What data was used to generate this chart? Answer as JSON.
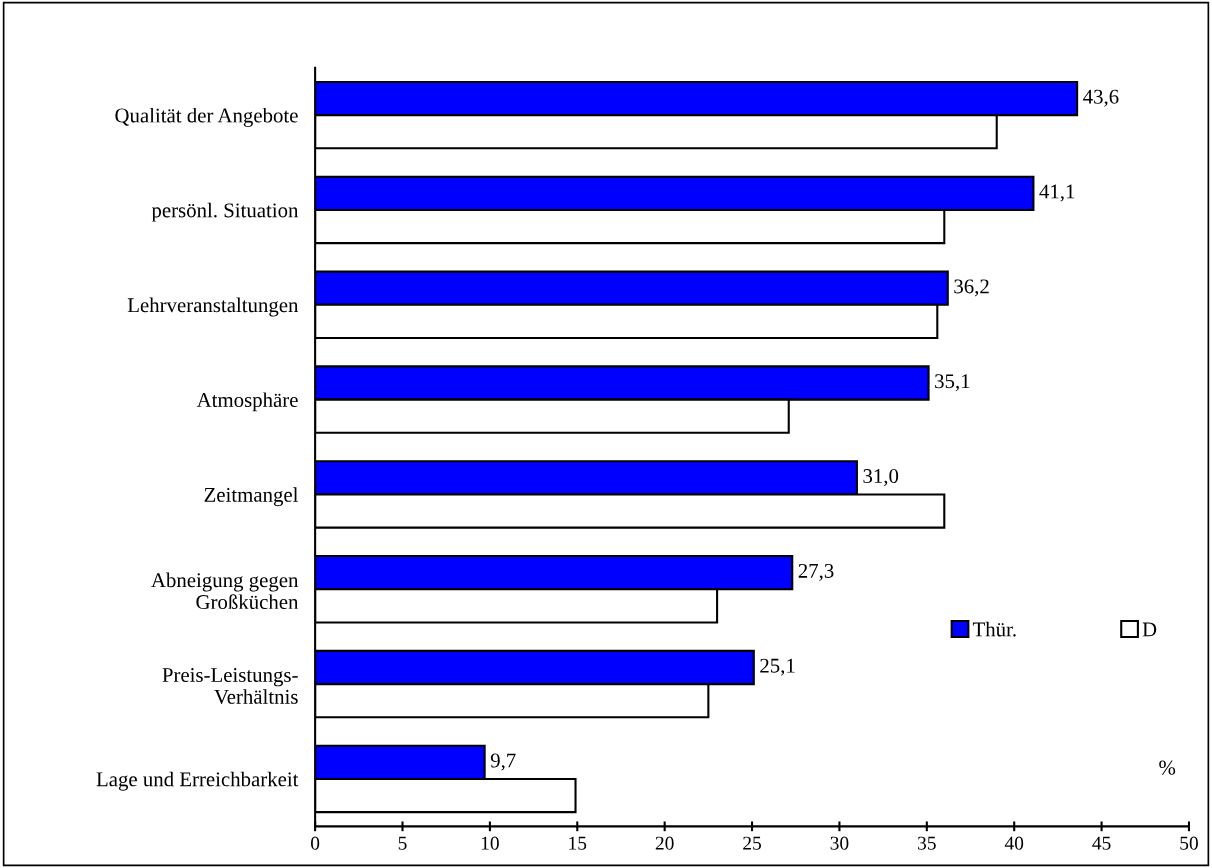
{
  "chart_data": {
    "type": "bar",
    "orientation": "horizontal",
    "categories": [
      "Qualität der Angebote",
      "persönl. Situation",
      "Lehrveranstaltungen",
      "Atmosphäre",
      "Zeitmangel",
      "Abneigung gegen\nGroßküchen",
      "Preis-Leistungs-\nVerhältnis",
      "Lage und Erreichbarkeit"
    ],
    "series": [
      {
        "name": "Thür.",
        "color": "#0000ff",
        "values": [
          43.6,
          41.1,
          36.2,
          35.1,
          31.0,
          27.3,
          25.1,
          9.7
        ],
        "value_labels": [
          "43,6",
          "41,1",
          "36,2",
          "35,1",
          "31,0",
          "27,3",
          "25,1",
          "9,7"
        ]
      },
      {
        "name": "D",
        "color": "#ffffff",
        "values": [
          39.0,
          36.0,
          35.6,
          27.1,
          36.0,
          23.0,
          22.5,
          14.9
        ]
      }
    ],
    "xlim": [
      0,
      50
    ],
    "xticks": [
      0,
      5,
      10,
      15,
      20,
      25,
      30,
      35,
      40,
      45,
      50
    ],
    "annotations": [
      "%"
    ],
    "legend": "bottom right",
    "grid": false
  }
}
